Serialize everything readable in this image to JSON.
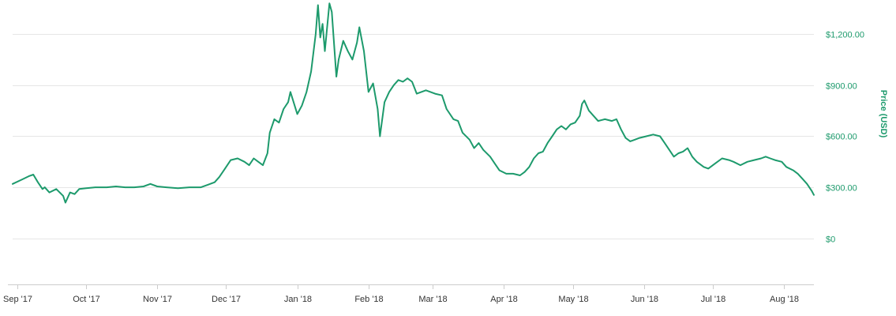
{
  "chart_data": {
    "type": "line",
    "title": "",
    "xlabel": "",
    "ylabel": "Price (USD)",
    "ylim": [
      -270,
      1400
    ],
    "grid": true,
    "legend": "none",
    "y_axis_side": "right",
    "x_range": [
      "2017-08-30",
      "2018-08-14"
    ],
    "y_ticks": [
      0,
      300,
      600,
      900,
      1200
    ],
    "y_tick_labels": [
      "$0",
      "$300.00",
      "$600.00",
      "$900.00",
      "$1,200.00"
    ],
    "x_ticks": [
      {
        "date": "2017-09-01",
        "label": "Sep '17"
      },
      {
        "date": "2017-10-01",
        "label": "Oct '17"
      },
      {
        "date": "2017-11-01",
        "label": "Nov '17"
      },
      {
        "date": "2017-12-01",
        "label": "Dec '17"
      },
      {
        "date": "2018-01-01",
        "label": "Jan '18"
      },
      {
        "date": "2018-02-01",
        "label": "Feb '18"
      },
      {
        "date": "2018-03-01",
        "label": "Mar '18"
      },
      {
        "date": "2018-04-01",
        "label": "Apr '18"
      },
      {
        "date": "2018-05-01",
        "label": "May '18"
      },
      {
        "date": "2018-06-01",
        "label": "Jun '18"
      },
      {
        "date": "2018-07-01",
        "label": "Jul '18"
      },
      {
        "date": "2018-08-01",
        "label": "Aug '18"
      }
    ],
    "series": [
      {
        "color": "#1d9a6c",
        "points": [
          [
            "2017-08-30",
            320
          ],
          [
            "2017-09-03",
            345
          ],
          [
            "2017-09-06",
            365
          ],
          [
            "2017-09-08",
            375
          ],
          [
            "2017-09-10",
            330
          ],
          [
            "2017-09-12",
            290
          ],
          [
            "2017-09-13",
            300
          ],
          [
            "2017-09-15",
            270
          ],
          [
            "2017-09-18",
            290
          ],
          [
            "2017-09-21",
            250
          ],
          [
            "2017-09-22",
            210
          ],
          [
            "2017-09-24",
            270
          ],
          [
            "2017-09-26",
            260
          ],
          [
            "2017-09-28",
            290
          ],
          [
            "2017-10-01",
            295
          ],
          [
            "2017-10-05",
            300
          ],
          [
            "2017-10-10",
            300
          ],
          [
            "2017-10-14",
            305
          ],
          [
            "2017-10-18",
            300
          ],
          [
            "2017-10-22",
            300
          ],
          [
            "2017-10-26",
            305
          ],
          [
            "2017-10-29",
            320
          ],
          [
            "2017-11-01",
            305
          ],
          [
            "2017-11-05",
            300
          ],
          [
            "2017-11-10",
            295
          ],
          [
            "2017-11-15",
            300
          ],
          [
            "2017-11-20",
            300
          ],
          [
            "2017-11-23",
            315
          ],
          [
            "2017-11-26",
            330
          ],
          [
            "2017-11-28",
            360
          ],
          [
            "2017-11-30",
            400
          ],
          [
            "2017-12-03",
            460
          ],
          [
            "2017-12-06",
            470
          ],
          [
            "2017-12-09",
            450
          ],
          [
            "2017-12-11",
            430
          ],
          [
            "2017-12-13",
            470
          ],
          [
            "2017-12-15",
            450
          ],
          [
            "2017-12-17",
            430
          ],
          [
            "2017-12-19",
            500
          ],
          [
            "2017-12-20",
            620
          ],
          [
            "2017-12-22",
            700
          ],
          [
            "2017-12-24",
            680
          ],
          [
            "2017-12-26",
            760
          ],
          [
            "2017-12-28",
            800
          ],
          [
            "2017-12-29",
            860
          ],
          [
            "2018-01-01",
            730
          ],
          [
            "2018-01-03",
            780
          ],
          [
            "2018-01-05",
            860
          ],
          [
            "2018-01-07",
            980
          ],
          [
            "2018-01-09",
            1200
          ],
          [
            "2018-01-10",
            1370
          ],
          [
            "2018-01-11",
            1180
          ],
          [
            "2018-01-12",
            1260
          ],
          [
            "2018-01-13",
            1100
          ],
          [
            "2018-01-15",
            1380
          ],
          [
            "2018-01-16",
            1330
          ],
          [
            "2018-01-18",
            950
          ],
          [
            "2018-01-19",
            1050
          ],
          [
            "2018-01-21",
            1160
          ],
          [
            "2018-01-23",
            1100
          ],
          [
            "2018-01-25",
            1050
          ],
          [
            "2018-01-27",
            1150
          ],
          [
            "2018-01-28",
            1240
          ],
          [
            "2018-01-30",
            1100
          ],
          [
            "2018-02-01",
            860
          ],
          [
            "2018-02-03",
            910
          ],
          [
            "2018-02-05",
            760
          ],
          [
            "2018-02-06",
            600
          ],
          [
            "2018-02-08",
            800
          ],
          [
            "2018-02-10",
            860
          ],
          [
            "2018-02-12",
            900
          ],
          [
            "2018-02-14",
            930
          ],
          [
            "2018-02-16",
            920
          ],
          [
            "2018-02-18",
            940
          ],
          [
            "2018-02-20",
            920
          ],
          [
            "2018-02-22",
            850
          ],
          [
            "2018-02-24",
            860
          ],
          [
            "2018-02-26",
            870
          ],
          [
            "2018-02-28",
            860
          ],
          [
            "2018-03-02",
            850
          ],
          [
            "2018-03-05",
            840
          ],
          [
            "2018-03-07",
            760
          ],
          [
            "2018-03-10",
            700
          ],
          [
            "2018-03-12",
            690
          ],
          [
            "2018-03-14",
            620
          ],
          [
            "2018-03-17",
            580
          ],
          [
            "2018-03-19",
            530
          ],
          [
            "2018-03-21",
            560
          ],
          [
            "2018-03-23",
            520
          ],
          [
            "2018-03-26",
            480
          ],
          [
            "2018-03-28",
            440
          ],
          [
            "2018-03-30",
            400
          ],
          [
            "2018-04-02",
            380
          ],
          [
            "2018-04-05",
            380
          ],
          [
            "2018-04-08",
            370
          ],
          [
            "2018-04-10",
            390
          ],
          [
            "2018-04-12",
            420
          ],
          [
            "2018-04-14",
            470
          ],
          [
            "2018-04-16",
            500
          ],
          [
            "2018-04-18",
            510
          ],
          [
            "2018-04-20",
            560
          ],
          [
            "2018-04-22",
            600
          ],
          [
            "2018-04-24",
            640
          ],
          [
            "2018-04-26",
            660
          ],
          [
            "2018-04-28",
            640
          ],
          [
            "2018-04-30",
            670
          ],
          [
            "2018-05-02",
            680
          ],
          [
            "2018-05-04",
            720
          ],
          [
            "2018-05-05",
            790
          ],
          [
            "2018-05-06",
            810
          ],
          [
            "2018-05-08",
            750
          ],
          [
            "2018-05-10",
            720
          ],
          [
            "2018-05-12",
            690
          ],
          [
            "2018-05-15",
            700
          ],
          [
            "2018-05-18",
            690
          ],
          [
            "2018-05-20",
            700
          ],
          [
            "2018-05-22",
            640
          ],
          [
            "2018-05-24",
            590
          ],
          [
            "2018-05-26",
            570
          ],
          [
            "2018-05-28",
            580
          ],
          [
            "2018-05-30",
            590
          ],
          [
            "2018-06-02",
            600
          ],
          [
            "2018-06-05",
            610
          ],
          [
            "2018-06-08",
            600
          ],
          [
            "2018-06-10",
            560
          ],
          [
            "2018-06-12",
            520
          ],
          [
            "2018-06-14",
            480
          ],
          [
            "2018-06-16",
            500
          ],
          [
            "2018-06-18",
            510
          ],
          [
            "2018-06-20",
            530
          ],
          [
            "2018-06-22",
            480
          ],
          [
            "2018-06-24",
            450
          ],
          [
            "2018-06-27",
            420
          ],
          [
            "2018-06-29",
            410
          ],
          [
            "2018-07-02",
            440
          ],
          [
            "2018-07-05",
            470
          ],
          [
            "2018-07-08",
            460
          ],
          [
            "2018-07-10",
            450
          ],
          [
            "2018-07-13",
            430
          ],
          [
            "2018-07-16",
            450
          ],
          [
            "2018-07-19",
            460
          ],
          [
            "2018-07-22",
            470
          ],
          [
            "2018-07-24",
            480
          ],
          [
            "2018-07-26",
            470
          ],
          [
            "2018-07-28",
            460
          ],
          [
            "2018-07-31",
            450
          ],
          [
            "2018-08-02",
            420
          ],
          [
            "2018-08-05",
            400
          ],
          [
            "2018-08-07",
            380
          ],
          [
            "2018-08-09",
            350
          ],
          [
            "2018-08-11",
            320
          ],
          [
            "2018-08-13",
            280
          ],
          [
            "2018-08-14",
            255
          ]
        ]
      }
    ]
  },
  "colors": {
    "line": "#1d9a6c",
    "y_label": "#1d9a6c",
    "grid": "#e6e6e6",
    "x_label": "#333333"
  }
}
